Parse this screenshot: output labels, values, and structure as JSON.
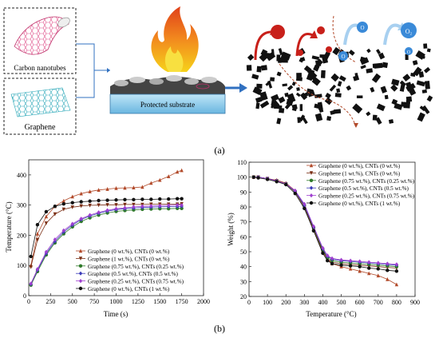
{
  "panel_a": {
    "label_cnt": "Carbon nanotubes",
    "label_graphene": "Graphene",
    "label_substrate": "Protected substrate",
    "panel_label": "(a)",
    "bubble_labels": [
      "O",
      "O",
      "O₂",
      "O"
    ],
    "colors": {
      "cnt_net": "#e0508a",
      "graphene_net": "#2aa8b8",
      "substrate": "#7ec8e8",
      "arrow": "#3070c0",
      "flame": "#f07020",
      "char": "#111111",
      "red_particle": "#c8201a",
      "blue_particle": "#3a8ad8"
    }
  },
  "panel_b_label": "(b)",
  "chart_data": [
    {
      "type": "line",
      "xlabel": "Time (s)",
      "ylabel": "Temperature (°C)",
      "xlim": [
        0,
        2000
      ],
      "ylim": [
        0,
        450
      ],
      "xticks": [
        0,
        250,
        500,
        750,
        1000,
        1250,
        1500,
        1750,
        2000
      ],
      "yticks": [
        0,
        100,
        200,
        300,
        400
      ],
      "legend_position": "bottom-right",
      "series": [
        {
          "name": "Graphene (0 wt.%), CNTs (0 wt.%)",
          "color": "#b24a2a",
          "marker": "triangle-up",
          "x": [
            25,
            100,
            200,
            300,
            400,
            500,
            600,
            700,
            800,
            900,
            1000,
            1100,
            1200,
            1300,
            1400,
            1500,
            1600,
            1700,
            1750
          ],
          "y": [
            100,
            205,
            262,
            296,
            314,
            328,
            338,
            345,
            350,
            353,
            356,
            357,
            358,
            360,
            373,
            383,
            395,
            410,
            415
          ]
        },
        {
          "name": "Graphene (1 wt.%), CNTs (0 wt.%)",
          "color": "#7a2e14",
          "marker": "triangle-down",
          "x": [
            25,
            100,
            200,
            300,
            400,
            500,
            600,
            700,
            800,
            900,
            1000,
            1100,
            1200,
            1300,
            1400,
            1500,
            1600,
            1700,
            1750
          ],
          "y": [
            95,
            185,
            240,
            270,
            286,
            293,
            297,
            299,
            300,
            301,
            301,
            302,
            302,
            302,
            303,
            303,
            303,
            303,
            304
          ]
        },
        {
          "name": "Graphene (0.75 wt.%), CNTs (0.25 wt.%)",
          "color": "#2f7a2a",
          "marker": "circle",
          "x": [
            25,
            100,
            200,
            300,
            400,
            500,
            600,
            700,
            800,
            900,
            1000,
            1100,
            1200,
            1300,
            1400,
            1500,
            1600,
            1700,
            1750
          ],
          "y": [
            35,
            80,
            135,
            175,
            205,
            228,
            246,
            258,
            267,
            274,
            279,
            282,
            284,
            286,
            287,
            288,
            288,
            289,
            289
          ]
        },
        {
          "name": "Graphene (0.5 wt.%), CNTs (0.5 wt.%)",
          "color": "#3a3ab8",
          "marker": "diamond",
          "x": [
            25,
            100,
            200,
            300,
            400,
            500,
            600,
            700,
            800,
            900,
            1000,
            1100,
            1200,
            1300,
            1400,
            1500,
            1600,
            1700,
            1750
          ],
          "y": [
            38,
            85,
            140,
            180,
            211,
            234,
            252,
            264,
            273,
            280,
            285,
            288,
            290,
            292,
            293,
            294,
            295,
            295,
            296
          ]
        },
        {
          "name": "Graphene (0.25 wt.%), CNTs (0.75 wt.%)",
          "color": "#a040d0",
          "marker": "diamond",
          "x": [
            25,
            100,
            200,
            300,
            400,
            500,
            600,
            700,
            800,
            900,
            1000,
            1100,
            1200,
            1300,
            1400,
            1500,
            1600,
            1700,
            1750
          ],
          "y": [
            40,
            88,
            145,
            186,
            216,
            238,
            255,
            267,
            276,
            283,
            288,
            291,
            294,
            296,
            297,
            298,
            299,
            300,
            300
          ]
        },
        {
          "name": "Graphene (0 wt.%), CNTs (1 wt.%)",
          "color": "#111111",
          "marker": "circle",
          "x": [
            25,
            100,
            200,
            300,
            400,
            500,
            600,
            700,
            800,
            900,
            1000,
            1100,
            1200,
            1300,
            1400,
            1500,
            1600,
            1700,
            1750
          ],
          "y": [
            130,
            235,
            278,
            296,
            304,
            308,
            311,
            313,
            315,
            316,
            317,
            318,
            318,
            319,
            319,
            320,
            320,
            321,
            321
          ]
        }
      ]
    },
    {
      "type": "line",
      "xlabel": "Temperature (°C)",
      "ylabel": "Weight (%)",
      "xlim": [
        0,
        900
      ],
      "ylim": [
        20,
        110
      ],
      "xticks": [
        0,
        100,
        200,
        300,
        400,
        500,
        600,
        700,
        800,
        900
      ],
      "yticks": [
        20,
        30,
        40,
        50,
        60,
        70,
        80,
        90,
        100,
        110
      ],
      "legend_position": "top-right",
      "series": [
        {
          "name": "Graphene (0 wt.%), CNTs (0 wt.%)",
          "color": "#b24a2a",
          "marker": "triangle-up",
          "x": [
            25,
            50,
            100,
            150,
            200,
            250,
            300,
            350,
            400,
            425,
            450,
            500,
            550,
            600,
            650,
            700,
            750,
            800
          ],
          "y": [
            100,
            100,
            99,
            98,
            96,
            91,
            81,
            66,
            51,
            45,
            42,
            40,
            38.5,
            37,
            35.5,
            34,
            31.5,
            28
          ]
        },
        {
          "name": "Graphene (1 wt.%), CNTs (0 wt.%)",
          "color": "#7a2e14",
          "marker": "triangle-down",
          "x": [
            25,
            50,
            100,
            150,
            200,
            250,
            300,
            350,
            400,
            425,
            450,
            500,
            550,
            600,
            650,
            700,
            750,
            800
          ],
          "y": [
            100,
            100,
            99,
            97.5,
            95.5,
            90,
            80,
            65,
            50,
            45,
            43,
            42,
            41.5,
            41,
            40.5,
            40,
            39.5,
            39
          ]
        },
        {
          "name": "Graphene (0.75 wt.%), CNTs (0.25 wt.%)",
          "color": "#2f7a2a",
          "marker": "circle",
          "x": [
            25,
            50,
            100,
            150,
            200,
            250,
            300,
            350,
            400,
            425,
            450,
            500,
            550,
            600,
            650,
            700,
            750,
            800
          ],
          "y": [
            100,
            100,
            99,
            97.5,
            95.5,
            90.5,
            81,
            66,
            51,
            46,
            44,
            43,
            42.5,
            42,
            41.5,
            41,
            40.5,
            40
          ]
        },
        {
          "name": "Graphene (0.5 wt.%), CNTs (0.5 wt.%)",
          "color": "#3a3ab8",
          "marker": "diamond",
          "x": [
            25,
            50,
            100,
            150,
            200,
            250,
            300,
            350,
            400,
            425,
            450,
            500,
            550,
            600,
            650,
            700,
            750,
            800
          ],
          "y": [
            100,
            100,
            99,
            97.5,
            95.5,
            90.5,
            81,
            66.5,
            52,
            47,
            45,
            44,
            43.5,
            43,
            42.5,
            42,
            41.5,
            41
          ]
        },
        {
          "name": "Graphene (0.25 wt.%), CNTs (0.75 wt.%)",
          "color": "#a040d0",
          "marker": "diamond",
          "x": [
            25,
            50,
            100,
            150,
            200,
            250,
            300,
            350,
            400,
            425,
            450,
            500,
            550,
            600,
            650,
            700,
            750,
            800
          ],
          "y": [
            100,
            100,
            99,
            97.5,
            95.5,
            91,
            82,
            67,
            52.5,
            47.5,
            45.5,
            44.5,
            44,
            43.5,
            43,
            42.5,
            42,
            41.5
          ]
        },
        {
          "name": "Graphene (0 wt.%), CNTs (1 wt.%)",
          "color": "#111111",
          "marker": "circle",
          "x": [
            25,
            50,
            100,
            150,
            200,
            250,
            300,
            350,
            400,
            425,
            450,
            500,
            550,
            600,
            650,
            700,
            750,
            800
          ],
          "y": [
            100,
            99.5,
            98.5,
            97,
            95,
            89,
            79,
            64,
            49,
            44,
            42,
            41,
            40.5,
            40,
            39,
            38.5,
            37.5,
            37
          ]
        }
      ]
    }
  ]
}
